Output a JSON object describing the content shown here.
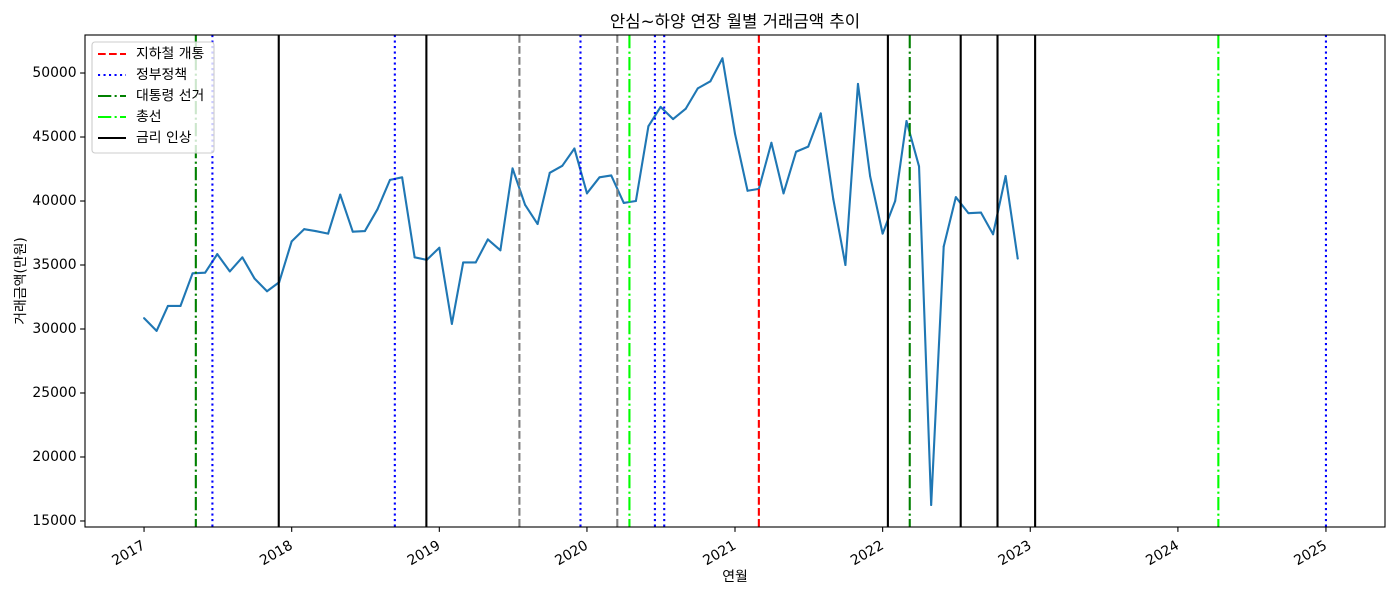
{
  "chart_data": {
    "type": "line",
    "title": "안심~하양 연장 월별 거래금액 추이",
    "xlabel": "연월",
    "ylabel": "거래금액(만원)",
    "x_ticks": [
      "2017",
      "2018",
      "2019",
      "2020",
      "2021",
      "2022",
      "2023",
      "2024",
      "2025"
    ],
    "y_ticks": [
      15000,
      20000,
      25000,
      30000,
      35000,
      40000,
      45000,
      50000
    ],
    "xlim": [
      "2016-08-08",
      "2025-05-27"
    ],
    "ylim": [
      14530,
      52970
    ],
    "grid": false,
    "legend_position": "upper-left",
    "series": [
      {
        "color": "#1f77b4",
        "x": [
          "2017-01",
          "2017-02",
          "2017-03",
          "2017-04",
          "2017-05",
          "2017-06",
          "2017-07",
          "2017-08",
          "2017-09",
          "2017-10",
          "2017-11",
          "2017-12",
          "2018-01",
          "2018-02",
          "2018-03",
          "2018-04",
          "2018-05",
          "2018-06",
          "2018-07",
          "2018-08",
          "2018-09",
          "2018-10",
          "2018-11",
          "2018-12",
          "2019-01",
          "2019-02",
          "2019-03",
          "2019-04",
          "2019-05",
          "2019-06",
          "2019-07",
          "2019-08",
          "2019-09",
          "2019-10",
          "2019-11",
          "2019-12",
          "2020-01",
          "2020-02",
          "2020-03",
          "2020-04",
          "2020-05",
          "2020-06",
          "2020-07",
          "2020-08",
          "2020-09",
          "2020-10",
          "2020-11",
          "2020-12",
          "2021-01",
          "2021-02",
          "2021-03",
          "2021-04",
          "2021-05",
          "2021-06",
          "2021-07",
          "2021-08",
          "2021-09",
          "2021-10",
          "2021-11",
          "2021-12",
          "2022-01",
          "2022-02",
          "2022-03",
          "2022-04",
          "2022-05",
          "2022-06",
          "2022-07",
          "2022-08",
          "2022-09",
          "2022-10",
          "2022-11",
          "2022-12"
        ],
        "values": [
          30850,
          29850,
          31800,
          31800,
          34350,
          34400,
          35850,
          34500,
          35600,
          33950,
          32950,
          33650,
          36850,
          37800,
          37650,
          37450,
          40500,
          37600,
          37650,
          39350,
          41650,
          41850,
          35600,
          35400,
          36350,
          30400,
          35200,
          35200,
          37000,
          36150,
          42550,
          39700,
          38200,
          42200,
          42750,
          44100,
          40600,
          41850,
          42000,
          39850,
          40000,
          45850,
          47350,
          46400,
          47200,
          48800,
          49350,
          51150,
          45250,
          40800,
          40950,
          44550,
          40600,
          43850,
          44250,
          46850,
          40150,
          35000,
          49150,
          41950,
          37450,
          40000,
          46250,
          42700,
          16250,
          36450,
          40300,
          39050,
          39100,
          37400,
          41950,
          35500
        ]
      }
    ],
    "events": [
      {
        "label": "지하철 개통",
        "color": "#ff0000",
        "linestyle": "dashed",
        "dates": [
          "2021-03-01"
        ]
      },
      {
        "label": "정부정책",
        "color": "#0000ff",
        "linestyle": "dotted",
        "dates": [
          "2017-06-19",
          "2018-09-13",
          "2019-12-16",
          "2020-06-17",
          "2020-07-10",
          "2025-01-01"
        ]
      },
      {
        "label": "대통령 선거",
        "color": "#008000",
        "linestyle": "dashdot",
        "dates": [
          "2017-05-09",
          "2022-03-09"
        ]
      },
      {
        "label": "총선",
        "color": "#00ff00",
        "linestyle": "dashdot",
        "dates": [
          "2020-04-15",
          "2024-04-10"
        ]
      },
      {
        "label": "금리 인상",
        "color": "#000000",
        "linestyle": "solid",
        "dates": [
          "2017-11-30",
          "2018-11-30",
          "2022-01-14",
          "2022-07-13",
          "2022-10-12",
          "2023-01-13"
        ]
      },
      {
        "color": "#808080",
        "linestyle": "dashed",
        "dates": [
          "2019-07-18",
          "2020-03-16"
        ]
      }
    ]
  }
}
